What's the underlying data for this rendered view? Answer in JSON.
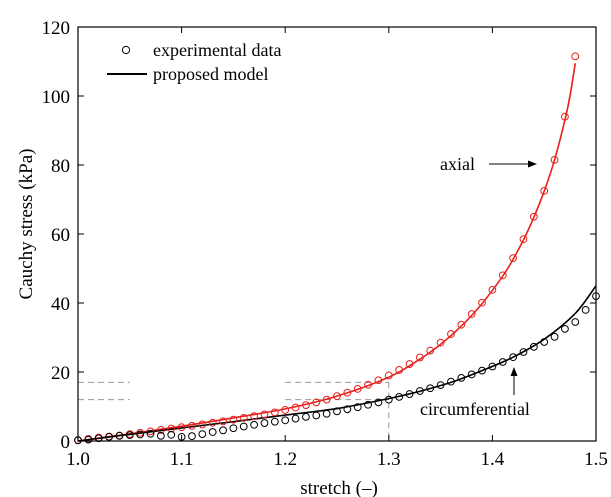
{
  "chart_data": {
    "type": "scatter",
    "xlabel": "stretch (–)",
    "ylabel": "Cauchy stress (kPa)",
    "xlim": [
      1.0,
      1.5
    ],
    "ylim": [
      0,
      120
    ],
    "x_ticks": [
      "1.0",
      "1.1",
      "1.2",
      "1.3",
      "1.4",
      "1.5"
    ],
    "y_ticks": [
      "0",
      "20",
      "40",
      "60",
      "80",
      "100",
      "120"
    ],
    "legend": {
      "placement": "top-left",
      "entries": [
        {
          "label": "experimental data",
          "marker": "open-circle"
        },
        {
          "label": "proposed model",
          "marker": "line"
        }
      ]
    },
    "series": [
      {
        "name": "axial",
        "color": "#e8201c",
        "points": [
          [
            1.0,
            0.3
          ],
          [
            1.01,
            0.6
          ],
          [
            1.02,
            1.0
          ],
          [
            1.03,
            1.3
          ],
          [
            1.04,
            1.6
          ],
          [
            1.05,
            2.0
          ],
          [
            1.06,
            2.4
          ],
          [
            1.07,
            2.8
          ],
          [
            1.08,
            3.2
          ],
          [
            1.09,
            3.6
          ],
          [
            1.1,
            4.0
          ],
          [
            1.11,
            4.4
          ],
          [
            1.12,
            4.8
          ],
          [
            1.13,
            5.3
          ],
          [
            1.14,
            5.7
          ],
          [
            1.15,
            6.2
          ],
          [
            1.16,
            6.7
          ],
          [
            1.17,
            7.2
          ],
          [
            1.18,
            7.7
          ],
          [
            1.19,
            8.3
          ],
          [
            1.2,
            9.0
          ],
          [
            1.21,
            9.7
          ],
          [
            1.22,
            10.4
          ],
          [
            1.23,
            11.2
          ],
          [
            1.24,
            12.0
          ],
          [
            1.25,
            13.0
          ],
          [
            1.26,
            14.0
          ],
          [
            1.27,
            15.1
          ],
          [
            1.28,
            16.3
          ],
          [
            1.29,
            17.6
          ],
          [
            1.3,
            19.0
          ],
          [
            1.31,
            20.6
          ],
          [
            1.32,
            22.3
          ],
          [
            1.33,
            24.2
          ],
          [
            1.34,
            26.2
          ],
          [
            1.35,
            28.5
          ],
          [
            1.36,
            31.0
          ],
          [
            1.37,
            33.7
          ],
          [
            1.38,
            36.8
          ],
          [
            1.39,
            40.1
          ],
          [
            1.4,
            43.8
          ],
          [
            1.41,
            48.0
          ],
          [
            1.42,
            53.0
          ],
          [
            1.43,
            58.5
          ],
          [
            1.44,
            65.0
          ],
          [
            1.45,
            72.5
          ],
          [
            1.46,
            81.5
          ],
          [
            1.47,
            94.0
          ],
          [
            1.48,
            111.5
          ]
        ],
        "model": [
          [
            1.0,
            0.0
          ],
          [
            1.05,
            2.1
          ],
          [
            1.1,
            4.3
          ],
          [
            1.15,
            6.7
          ],
          [
            1.2,
            9.3
          ],
          [
            1.25,
            13.0
          ],
          [
            1.3,
            18.5
          ],
          [
            1.33,
            23.7
          ],
          [
            1.35,
            28.0
          ],
          [
            1.37,
            33.3
          ],
          [
            1.39,
            39.8
          ],
          [
            1.41,
            47.8
          ],
          [
            1.42,
            52.7
          ],
          [
            1.43,
            58.3
          ],
          [
            1.44,
            64.8
          ],
          [
            1.45,
            72.4
          ],
          [
            1.46,
            81.5
          ],
          [
            1.47,
            93.0
          ],
          [
            1.475,
            100.2
          ],
          [
            1.48,
            109.5
          ]
        ]
      },
      {
        "name": "circumferential",
        "color": "#000000",
        "points": [
          [
            1.0,
            0.2
          ],
          [
            1.01,
            0.4
          ],
          [
            1.02,
            0.8
          ],
          [
            1.03,
            1.2
          ],
          [
            1.04,
            1.5
          ],
          [
            1.05,
            1.7
          ],
          [
            1.06,
            1.9
          ],
          [
            1.07,
            2.1
          ],
          [
            1.08,
            1.5
          ],
          [
            1.09,
            1.8
          ],
          [
            1.1,
            1.2
          ],
          [
            1.11,
            1.4
          ],
          [
            1.12,
            2.0
          ],
          [
            1.13,
            2.6
          ],
          [
            1.14,
            3.1
          ],
          [
            1.15,
            3.7
          ],
          [
            1.16,
            4.2
          ],
          [
            1.17,
            4.7
          ],
          [
            1.18,
            5.2
          ],
          [
            1.19,
            5.6
          ],
          [
            1.2,
            6.0
          ],
          [
            1.21,
            6.5
          ],
          [
            1.22,
            7.0
          ],
          [
            1.23,
            7.4
          ],
          [
            1.24,
            7.9
          ],
          [
            1.25,
            8.6
          ],
          [
            1.26,
            9.2
          ],
          [
            1.27,
            9.8
          ],
          [
            1.28,
            10.5
          ],
          [
            1.29,
            11.2
          ],
          [
            1.3,
            12.0
          ],
          [
            1.31,
            12.8
          ],
          [
            1.32,
            13.6
          ],
          [
            1.33,
            14.5
          ],
          [
            1.34,
            15.3
          ],
          [
            1.35,
            16.2
          ],
          [
            1.36,
            17.2
          ],
          [
            1.37,
            18.3
          ],
          [
            1.38,
            19.3
          ],
          [
            1.39,
            20.4
          ],
          [
            1.4,
            21.6
          ],
          [
            1.41,
            22.9
          ],
          [
            1.42,
            24.3
          ],
          [
            1.43,
            25.8
          ],
          [
            1.44,
            27.3
          ],
          [
            1.45,
            28.7
          ],
          [
            1.46,
            30.2
          ],
          [
            1.47,
            32.5
          ],
          [
            1.48,
            34.5
          ],
          [
            1.49,
            38.0
          ],
          [
            1.5,
            42.0
          ]
        ],
        "model": [
          [
            1.0,
            0.0
          ],
          [
            1.05,
            1.9
          ],
          [
            1.1,
            3.8
          ],
          [
            1.15,
            5.6
          ],
          [
            1.2,
            7.5
          ],
          [
            1.25,
            9.4
          ],
          [
            1.3,
            12.3
          ],
          [
            1.33,
            14.4
          ],
          [
            1.36,
            17.0
          ],
          [
            1.39,
            20.4
          ],
          [
            1.42,
            24.3
          ],
          [
            1.45,
            29.5
          ],
          [
            1.48,
            37.0
          ],
          [
            1.5,
            45.0
          ]
        ]
      }
    ],
    "annotations": [
      {
        "text": "axial",
        "arrow": "right"
      },
      {
        "text": "circumferential",
        "arrow": "up"
      }
    ],
    "reference_lines": {
      "y_values": [
        12,
        17
      ],
      "x_value": 1.3,
      "style": "dashed",
      "color": "#999999"
    }
  }
}
